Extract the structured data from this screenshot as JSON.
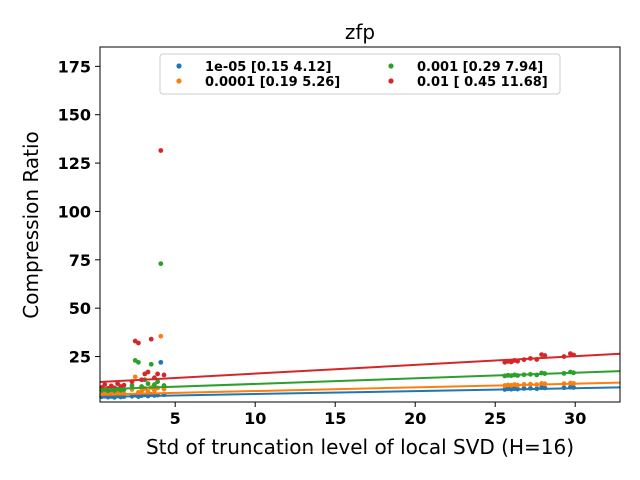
{
  "chart_data": {
    "type": "scatter",
    "title": "zfp",
    "xlabel": "Std of truncation level of local SVD (H=16)",
    "ylabel": "Compression Ratio",
    "xlim": [
      0.3,
      32.8
    ],
    "ylim": [
      1.5,
      185
    ],
    "xticks": [
      5,
      10,
      15,
      20,
      25,
      30
    ],
    "yticks": [
      25,
      50,
      75,
      100,
      125,
      150,
      175
    ],
    "grid": false,
    "legend_position": "top-center",
    "legend_columns": 2,
    "series": [
      {
        "name": "1e-05 [0.15 4.12]",
        "color": "#1f77b4",
        "fit": {
          "slope": 0.15,
          "intercept": 4.12
        },
        "points": [
          [
            0.4,
            4.2
          ],
          [
            0.6,
            4.5
          ],
          [
            0.8,
            4.0
          ],
          [
            1.0,
            4.4
          ],
          [
            1.2,
            3.9
          ],
          [
            1.4,
            4.6
          ],
          [
            1.6,
            4.1
          ],
          [
            1.8,
            4.3
          ],
          [
            2.3,
            4.5
          ],
          [
            2.5,
            5.0
          ],
          [
            2.7,
            4.3
          ],
          [
            2.9,
            4.8
          ],
          [
            3.1,
            5.2
          ],
          [
            3.3,
            4.6
          ],
          [
            3.5,
            5.4
          ],
          [
            3.7,
            4.9
          ],
          [
            3.9,
            5.1
          ],
          [
            4.1,
            22.0
          ],
          [
            4.3,
            5.3
          ],
          [
            25.6,
            8.0
          ],
          [
            25.8,
            8.3
          ],
          [
            26.0,
            8.1
          ],
          [
            26.2,
            8.4
          ],
          [
            26.4,
            8.2
          ],
          [
            26.8,
            8.5
          ],
          [
            27.2,
            8.6
          ],
          [
            27.6,
            8.4
          ],
          [
            27.9,
            9.0
          ],
          [
            28.1,
            8.8
          ],
          [
            29.3,
            8.9
          ],
          [
            29.7,
            9.2
          ],
          [
            29.9,
            9.0
          ]
        ]
      },
      {
        "name": "0.0001 [0.19 5.26]",
        "color": "#ff7f0e",
        "fit": {
          "slope": 0.19,
          "intercept": 5.26
        },
        "points": [
          [
            0.4,
            5.3
          ],
          [
            0.6,
            5.8
          ],
          [
            0.8,
            5.1
          ],
          [
            1.0,
            5.6
          ],
          [
            1.2,
            5.2
          ],
          [
            1.4,
            6.0
          ],
          [
            1.6,
            5.4
          ],
          [
            1.8,
            5.7
          ],
          [
            2.3,
            8.0
          ],
          [
            2.5,
            14.5
          ],
          [
            2.7,
            6.5
          ],
          [
            2.9,
            7.2
          ],
          [
            3.1,
            8.5
          ],
          [
            3.3,
            7.0
          ],
          [
            3.5,
            9.0
          ],
          [
            3.7,
            7.5
          ],
          [
            3.9,
            8.8
          ],
          [
            4.1,
            35.5
          ],
          [
            4.3,
            8.2
          ],
          [
            25.6,
            10.0
          ],
          [
            25.8,
            10.3
          ],
          [
            26.0,
            10.1
          ],
          [
            26.2,
            10.5
          ],
          [
            26.4,
            10.2
          ],
          [
            26.8,
            10.6
          ],
          [
            27.2,
            10.7
          ],
          [
            27.6,
            10.5
          ],
          [
            27.9,
            11.1
          ],
          [
            28.1,
            10.9
          ],
          [
            29.3,
            11.0
          ],
          [
            29.7,
            11.3
          ],
          [
            29.9,
            11.1
          ]
        ]
      },
      {
        "name": "0.001 [0.29 7.94]",
        "color": "#2ca02c",
        "fit": {
          "slope": 0.29,
          "intercept": 7.94
        },
        "points": [
          [
            0.4,
            7.5
          ],
          [
            0.6,
            8.0
          ],
          [
            0.8,
            7.3
          ],
          [
            1.0,
            7.8
          ],
          [
            1.2,
            7.4
          ],
          [
            1.4,
            8.2
          ],
          [
            1.6,
            7.6
          ],
          [
            1.8,
            7.9
          ],
          [
            2.3,
            10.0
          ],
          [
            2.5,
            23.0
          ],
          [
            2.7,
            22.0
          ],
          [
            2.9,
            9.5
          ],
          [
            3.1,
            13.0
          ],
          [
            3.3,
            11.0
          ],
          [
            3.5,
            21.0
          ],
          [
            3.7,
            10.5
          ],
          [
            3.9,
            12.0
          ],
          [
            4.1,
            73.0
          ],
          [
            4.3,
            10.0
          ],
          [
            25.6,
            15.0
          ],
          [
            25.8,
            15.3
          ],
          [
            26.0,
            15.1
          ],
          [
            26.2,
            15.5
          ],
          [
            26.4,
            15.2
          ],
          [
            26.8,
            15.6
          ],
          [
            27.2,
            15.8
          ],
          [
            27.6,
            15.5
          ],
          [
            27.9,
            16.5
          ],
          [
            28.1,
            16.2
          ],
          [
            29.3,
            16.3
          ],
          [
            29.7,
            17.0
          ],
          [
            29.9,
            16.6
          ]
        ]
      },
      {
        "name": "0.01 [ 0.45 11.68]",
        "color": "#d62728",
        "fit": {
          "slope": 0.45,
          "intercept": 11.68
        },
        "points": [
          [
            0.4,
            9.0
          ],
          [
            0.6,
            10.5
          ],
          [
            0.8,
            8.5
          ],
          [
            1.0,
            9.8
          ],
          [
            1.2,
            8.8
          ],
          [
            1.4,
            11.0
          ],
          [
            1.6,
            9.5
          ],
          [
            1.8,
            10.2
          ],
          [
            2.3,
            12.0
          ],
          [
            2.5,
            33.0
          ],
          [
            2.7,
            32.0
          ],
          [
            2.9,
            13.0
          ],
          [
            3.1,
            16.0
          ],
          [
            3.3,
            17.0
          ],
          [
            3.5,
            34.0
          ],
          [
            3.7,
            14.0
          ],
          [
            3.9,
            16.0
          ],
          [
            4.1,
            131.5
          ],
          [
            4.3,
            15.5
          ],
          [
            25.6,
            22.0
          ],
          [
            25.8,
            22.5
          ],
          [
            26.0,
            22.2
          ],
          [
            26.2,
            23.0
          ],
          [
            26.4,
            22.6
          ],
          [
            26.8,
            23.4
          ],
          [
            27.2,
            24.0
          ],
          [
            27.6,
            23.5
          ],
          [
            27.9,
            26.0
          ],
          [
            28.1,
            25.5
          ],
          [
            29.3,
            25.0
          ],
          [
            29.7,
            26.5
          ],
          [
            29.9,
            25.8
          ]
        ]
      }
    ]
  }
}
